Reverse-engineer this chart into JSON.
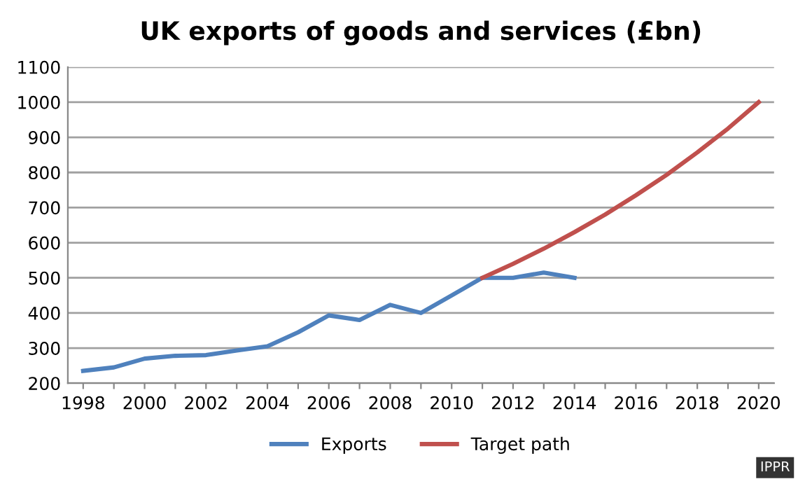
{
  "chart_data": {
    "type": "line",
    "title": "UK exports of goods and services (£bn)",
    "series": [
      {
        "name": "Exports",
        "color": "#4f81bd",
        "x": [
          1998,
          1999,
          2000,
          2001,
          2002,
          2003,
          2004,
          2005,
          2006,
          2007,
          2008,
          2009,
          2010,
          2011,
          2012,
          2013,
          2014
        ],
        "values": [
          235,
          245,
          270,
          278,
          280,
          293,
          305,
          345,
          393,
          380,
          423,
          400,
          450,
          500,
          500,
          515,
          500
        ]
      },
      {
        "name": "Target path",
        "color": "#c0504d",
        "x": [
          2011,
          2012,
          2013,
          2014,
          2015,
          2016,
          2017,
          2018,
          2019,
          2020
        ],
        "values": [
          500,
          540,
          583,
          630,
          680,
          735,
          793,
          857,
          925,
          1000
        ]
      }
    ],
    "xlim": [
      1997.5,
      2020.5
    ],
    "xticks": [
      1998,
      {
        "value": 1999,
        "label": null
      },
      2000,
      {
        "value": 2001,
        "label": null
      },
      2002,
      {
        "value": 2003,
        "label": null
      },
      2004,
      {
        "value": 2005,
        "label": null
      },
      2006,
      {
        "value": 2007,
        "label": null
      },
      2008,
      {
        "value": 2009,
        "label": null
      },
      2010,
      {
        "value": 2011,
        "label": null
      },
      2012,
      {
        "value": 2013,
        "label": null
      },
      2014,
      {
        "value": 2015,
        "label": null
      },
      2016,
      {
        "value": 2017,
        "label": null
      },
      2018,
      {
        "value": 2019,
        "label": null
      },
      2020
    ],
    "ylim": [
      200,
      1100
    ],
    "yticks": [
      200,
      300,
      400,
      500,
      600,
      700,
      800,
      900,
      1000,
      1100
    ],
    "grid": "y",
    "legend": "bottom",
    "marker": "none",
    "line_style": "solid",
    "annotations": [
      "IPPR"
    ]
  }
}
